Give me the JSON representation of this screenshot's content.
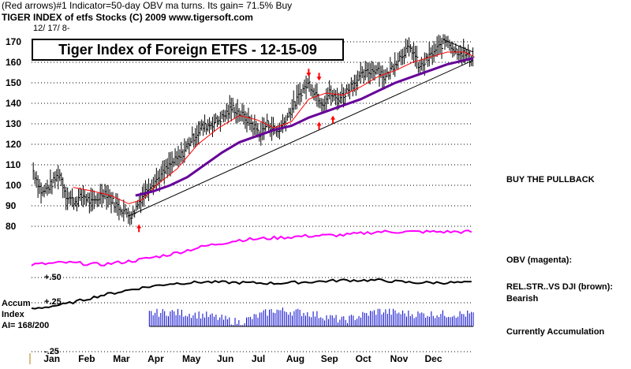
{
  "header": {
    "line1": "(Red arrows)#1 Indicator=50-day OBV ma turns. Its gain= 71.5% Buy",
    "line2": "TIGER INDEX of etfs Stocks  (C) 2009  www.tigersoft.com",
    "line3": "12/ 17/ 8-"
  },
  "title": "Tiger Index of Foreign ETFS - 12-15-09",
  "notes": {
    "buy": "BUY THE PULLBACK",
    "obv": "OBV (magenta):",
    "relstr": "REL.STR..VS DJI (brown):",
    "relstr_sub": "Bearish",
    "accum": "Currently Accumulation"
  },
  "left_labels": {
    "accum1": "Accum",
    "accum2": "Index",
    "ai": "AI= 168/200",
    "p50": "+.50",
    "p25": "+.25",
    "m25": "-.25"
  },
  "colors": {
    "price": "#000000",
    "ma_short": "#ff0000",
    "ma_long": "#660099",
    "obv": "#ff00ff",
    "relstr": "#000000",
    "accum": "#0000cc",
    "arrow": "#ff0000",
    "grid": "#000000"
  },
  "chart_data": {
    "type": "line",
    "title": "Tiger Index of Foreign ETFS - 12-15-09",
    "y_ticks": [
      80,
      90,
      100,
      110,
      120,
      130,
      140,
      150,
      160,
      170
    ],
    "ylim": [
      75,
      175
    ],
    "x_months": [
      "Jan",
      "Feb",
      "Mar",
      "Apr",
      "May",
      "Jun",
      "Jul",
      "Aug",
      "Sep",
      "Oct",
      "Nov",
      "Dec"
    ],
    "price_series": [
      {
        "m": 0.05,
        "v": 107
      },
      {
        "m": 0.3,
        "v": 96
      },
      {
        "m": 0.6,
        "v": 101
      },
      {
        "m": 0.8,
        "v": 106
      },
      {
        "m": 1.0,
        "v": 95
      },
      {
        "m": 1.25,
        "v": 92
      },
      {
        "m": 1.5,
        "v": 95
      },
      {
        "m": 1.75,
        "v": 91
      },
      {
        "m": 2.1,
        "v": 97
      },
      {
        "m": 2.4,
        "v": 91
      },
      {
        "m": 2.7,
        "v": 87
      },
      {
        "m": 2.9,
        "v": 85
      },
      {
        "m": 3.1,
        "v": 92
      },
      {
        "m": 3.4,
        "v": 100
      },
      {
        "m": 3.7,
        "v": 104
      },
      {
        "m": 4.0,
        "v": 110
      },
      {
        "m": 4.3,
        "v": 114
      },
      {
        "m": 4.6,
        "v": 122
      },
      {
        "m": 4.9,
        "v": 128
      },
      {
        "m": 5.2,
        "v": 130
      },
      {
        "m": 5.5,
        "v": 133
      },
      {
        "m": 5.8,
        "v": 138
      },
      {
        "m": 6.0,
        "v": 135
      },
      {
        "m": 6.3,
        "v": 131
      },
      {
        "m": 6.6,
        "v": 125
      },
      {
        "m": 6.8,
        "v": 130
      },
      {
        "m": 7.1,
        "v": 126
      },
      {
        "m": 7.3,
        "v": 131
      },
      {
        "m": 7.6,
        "v": 140
      },
      {
        "m": 7.8,
        "v": 146
      },
      {
        "m": 8.0,
        "v": 150
      },
      {
        "m": 8.2,
        "v": 145
      },
      {
        "m": 8.4,
        "v": 140
      },
      {
        "m": 8.6,
        "v": 145
      },
      {
        "m": 8.8,
        "v": 142
      },
      {
        "m": 9.0,
        "v": 144
      },
      {
        "m": 9.2,
        "v": 148
      },
      {
        "m": 9.5,
        "v": 153
      },
      {
        "m": 9.8,
        "v": 156
      },
      {
        "m": 10.0,
        "v": 157
      },
      {
        "m": 10.2,
        "v": 152
      },
      {
        "m": 10.5,
        "v": 160
      },
      {
        "m": 10.8,
        "v": 166
      },
      {
        "m": 11.0,
        "v": 166
      },
      {
        "m": 11.2,
        "v": 157
      },
      {
        "m": 11.5,
        "v": 163
      },
      {
        "m": 11.8,
        "v": 168
      },
      {
        "m": 12.0,
        "v": 171
      },
      {
        "m": 12.2,
        "v": 166
      },
      {
        "m": 12.4,
        "v": 165
      },
      {
        "m": 12.6,
        "v": 163
      },
      {
        "m": 12.75,
        "v": 162
      }
    ],
    "ma_short": [
      {
        "m": 1.2,
        "v": 99
      },
      {
        "m": 1.8,
        "v": 97
      },
      {
        "m": 2.3,
        "v": 95
      },
      {
        "m": 2.8,
        "v": 91
      },
      {
        "m": 3.2,
        "v": 93
      },
      {
        "m": 3.6,
        "v": 100
      },
      {
        "m": 4.2,
        "v": 108
      },
      {
        "m": 4.8,
        "v": 120
      },
      {
        "m": 5.4,
        "v": 128
      },
      {
        "m": 6.0,
        "v": 134
      },
      {
        "m": 6.5,
        "v": 132
      },
      {
        "m": 7.0,
        "v": 128
      },
      {
        "m": 7.5,
        "v": 131
      },
      {
        "m": 8.0,
        "v": 142
      },
      {
        "m": 8.5,
        "v": 145
      },
      {
        "m": 9.0,
        "v": 144
      },
      {
        "m": 9.5,
        "v": 148
      },
      {
        "m": 10.0,
        "v": 153
      },
      {
        "m": 10.5,
        "v": 156
      },
      {
        "m": 11.0,
        "v": 160
      },
      {
        "m": 11.4,
        "v": 162
      },
      {
        "m": 12.0,
        "v": 165
      },
      {
        "m": 12.5,
        "v": 165
      },
      {
        "m": 12.75,
        "v": 163
      }
    ],
    "ma_long": [
      {
        "m": 3.0,
        "v": 95
      },
      {
        "m": 3.5,
        "v": 97
      },
      {
        "m": 4.0,
        "v": 100
      },
      {
        "m": 4.5,
        "v": 104
      },
      {
        "m": 5.0,
        "v": 110
      },
      {
        "m": 5.5,
        "v": 116
      },
      {
        "m": 6.0,
        "v": 121
      },
      {
        "m": 6.5,
        "v": 124
      },
      {
        "m": 7.0,
        "v": 127
      },
      {
        "m": 7.5,
        "v": 129
      },
      {
        "m": 8.0,
        "v": 133
      },
      {
        "m": 8.5,
        "v": 136
      },
      {
        "m": 9.0,
        "v": 139
      },
      {
        "m": 9.5,
        "v": 142
      },
      {
        "m": 10.0,
        "v": 146
      },
      {
        "m": 10.5,
        "v": 150
      },
      {
        "m": 11.0,
        "v": 153
      },
      {
        "m": 11.5,
        "v": 156
      },
      {
        "m": 12.0,
        "v": 159
      },
      {
        "m": 12.75,
        "v": 162
      }
    ],
    "trendline": [
      {
        "m": 2.8,
        "v": 85
      },
      {
        "m": 12.75,
        "v": 161
      }
    ],
    "upper_trendline": [
      {
        "m": 11.9,
        "v": 171
      },
      {
        "m": 12.75,
        "v": 165
      }
    ],
    "red_arrows": [
      {
        "m": 3.1,
        "v": 81,
        "dir": "up"
      },
      {
        "m": 8.0,
        "v": 153,
        "dir": "down"
      },
      {
        "m": 8.3,
        "v": 151,
        "dir": "down"
      },
      {
        "m": 8.3,
        "v": 131,
        "dir": "up"
      },
      {
        "m": 8.7,
        "v": 134,
        "dir": "up"
      }
    ],
    "obv_level": [
      0.2,
      0.25,
      0.2,
      0.3,
      0.45,
      0.65,
      0.8,
      0.85,
      0.9,
      0.92,
      1.0,
      1.0
    ],
    "relstr_level": [
      0.0,
      0.15,
      0.4,
      0.6,
      0.75,
      0.8,
      0.78,
      0.76,
      0.8,
      0.85,
      0.85,
      0.78
    ],
    "accum_level": [
      -0.1,
      0.1,
      0.45,
      0.6,
      0.7,
      0.55,
      0.2,
      0.8,
      0.65,
      0.3,
      0.75,
      0.6
    ]
  }
}
